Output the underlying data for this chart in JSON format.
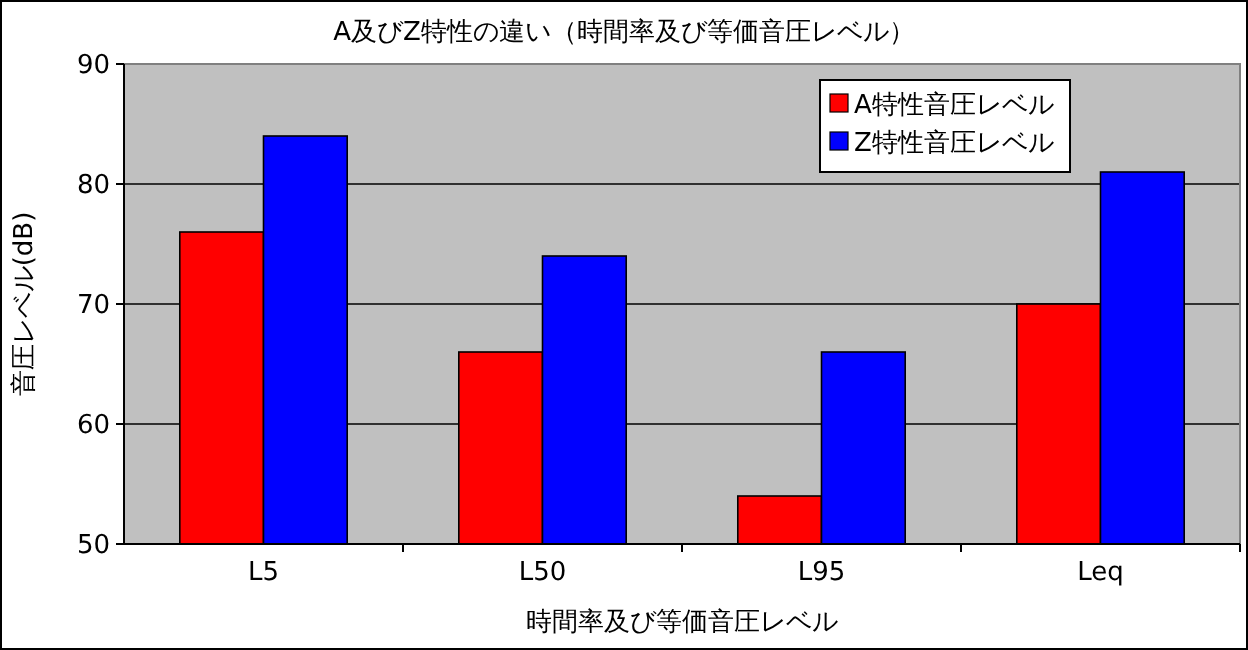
{
  "chart_data": {
    "type": "bar",
    "title": "A及びZ特性の違い（時間率及び等価音圧レベル）",
    "xlabel": "時間率及び等価音圧レベル",
    "ylabel": "音圧レベル(dB)",
    "categories": [
      "L5",
      "L50",
      "L95",
      "Leq"
    ],
    "series": [
      {
        "name": "A特性音圧レベル",
        "color": "#ff0000",
        "values": [
          76,
          66,
          54,
          70
        ]
      },
      {
        "name": "Z特性音圧レベル",
        "color": "#0000ff",
        "values": [
          84,
          74,
          66,
          81
        ]
      }
    ],
    "ylim": [
      50,
      90
    ],
    "yticks": [
      50,
      60,
      70,
      80,
      90
    ],
    "grid": "y",
    "legend": "top right"
  }
}
